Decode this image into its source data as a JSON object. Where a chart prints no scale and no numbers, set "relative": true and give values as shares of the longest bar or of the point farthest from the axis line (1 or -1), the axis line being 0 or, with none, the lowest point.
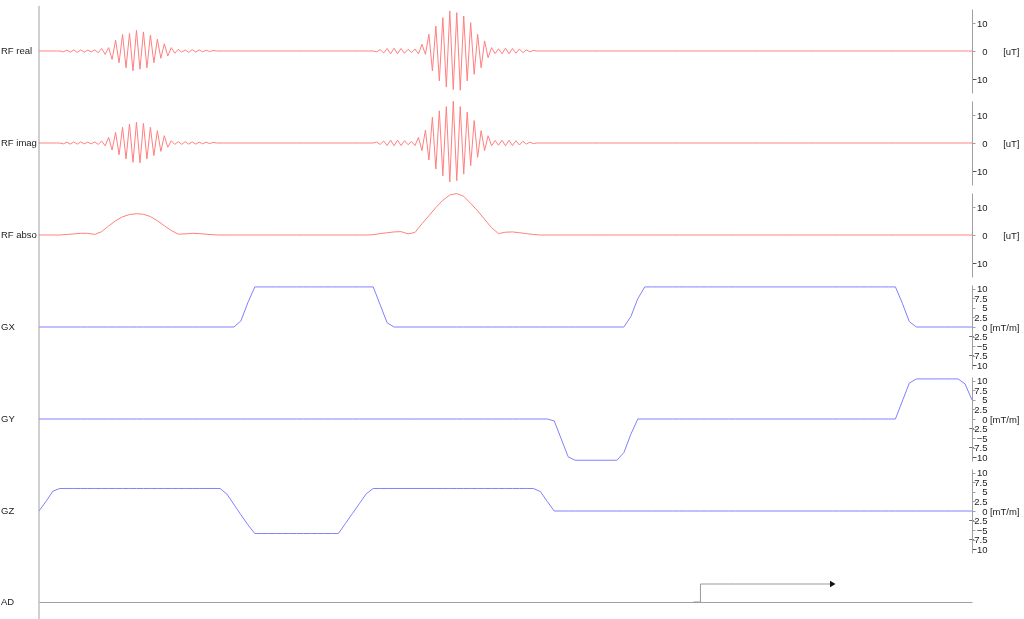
{
  "chart_data": [
    {
      "type": "line",
      "title": "RF real",
      "ylabel": "[uT]",
      "color": "#ff8080",
      "ylim": [
        -15,
        15
      ],
      "yticks": [
        10,
        0,
        -10
      ],
      "tick_labels": "y",
      "categories": [
        null,
        null,
        null,
        null,
        null,
        null,
        null,
        null,
        null,
        null,
        null,
        null,
        null,
        null,
        null,
        null,
        null,
        null,
        null,
        null,
        null,
        null,
        null,
        null,
        null,
        null,
        null,
        null,
        null,
        null,
        null,
        null,
        null,
        null,
        null,
        null,
        null,
        null,
        null,
        null,
        null,
        null,
        null,
        null,
        null,
        null,
        null,
        null,
        null,
        null,
        null,
        null,
        null,
        null,
        null,
        null,
        null,
        null,
        null,
        null,
        null,
        null,
        null,
        null,
        null,
        null,
        null,
        null,
        null,
        null,
        null,
        null,
        null,
        null,
        null,
        null,
        null,
        null,
        null,
        null,
        null,
        null,
        null,
        null,
        null,
        null,
        null,
        null,
        null,
        null,
        null,
        null,
        null,
        null,
        null,
        null,
        null,
        null,
        null,
        null,
        null,
        null,
        null,
        null,
        null,
        null,
        null,
        null,
        null,
        null,
        null,
        null,
        null,
        null,
        null,
        null,
        null,
        null,
        null,
        null,
        null,
        null,
        null,
        null,
        null,
        null,
        null,
        null,
        null,
        null,
        null,
        null,
        null,
        null,
        null,
        null,
        null,
        null,
        null,
        null,
        null,
        null,
        null,
        null,
        null,
        null,
        null,
        null,
        null,
        null,
        null,
        null,
        null,
        null,
        null,
        null,
        null,
        null,
        null,
        null,
        null,
        null,
        null,
        null,
        null,
        null,
        null,
        null,
        null,
        null,
        null,
        null,
        null,
        null,
        null,
        null,
        null,
        null,
        null,
        null,
        null,
        null,
        null,
        null,
        null,
        null,
        null,
        null,
        null,
        null,
        null,
        null,
        null,
        null,
        null,
        null,
        null,
        null,
        null,
        null,
        null,
        null,
        null,
        null,
        null,
        null,
        null,
        null,
        null,
        null,
        null,
        null,
        null,
        null,
        null,
        null,
        null,
        null,
        null,
        null,
        null,
        null,
        null,
        null,
        null,
        null,
        null,
        null,
        null,
        null,
        null,
        null,
        null,
        null,
        null,
        null,
        null,
        null,
        null,
        null,
        null,
        null,
        null,
        null,
        null,
        null,
        null,
        null,
        null,
        null,
        null,
        null,
        null,
        null,
        null,
        null,
        null,
        null,
        null,
        null,
        null,
        null,
        null,
        null,
        null,
        null,
        null,
        null,
        null
      ],
      "values": [
        0,
        0,
        0,
        0,
        0,
        0,
        0,
        -0.3,
        0.3,
        -0.4,
        0.4,
        -0.5,
        0.4,
        -0.4,
        0.3,
        -0.3,
        0.4,
        -0.6,
        0.9,
        -1.2,
        1.2,
        -3.0,
        3.9,
        -4.2,
        5.9,
        -6.0,
        6.3,
        -7.1,
        7.4,
        -6.5,
        6.8,
        -6.0,
        5.7,
        -4.2,
        4.2,
        -2.6,
        2.6,
        -1.8,
        1.2,
        -0.8,
        0.6,
        -0.4,
        0.4,
        -0.5,
        0.5,
        -0.4,
        0.4,
        -0.3,
        0.3,
        -0.2,
        0.2,
        0,
        0,
        0,
        0,
        0,
        0,
        0,
        0,
        0,
        0,
        0,
        0,
        0,
        0,
        0,
        0,
        0,
        0,
        0,
        0,
        0,
        0,
        0,
        0,
        0,
        0,
        0,
        0,
        0,
        0,
        0,
        0,
        0,
        0,
        0,
        0,
        0,
        0,
        0,
        0,
        0,
        0,
        0,
        0,
        0,
        0,
        -0.3,
        0.5,
        -0.7,
        0.9,
        -1.0,
        1.0,
        -1.0,
        0.9,
        -0.8,
        0.6,
        -0.5,
        0.7,
        -1.0,
        2.4,
        -1.2,
        6.0,
        -7.1,
        8.9,
        -10.7,
        11.9,
        -12.9,
        14.3,
        -13.8,
        13.7,
        -14.0,
        12.5,
        -10.7,
        10.1,
        -8.3,
        6.0,
        -6.0,
        3.6,
        -2.4,
        1.2,
        -0.9,
        0.8,
        -1.0,
        1.0,
        -1.0,
        0.9,
        -0.8,
        0.7,
        -0.6,
        0.4,
        -0.3,
        0.2,
        0,
        0,
        0,
        0,
        0,
        0,
        0,
        0,
        0,
        0,
        0,
        0,
        0,
        0,
        0,
        0,
        0,
        0,
        0,
        0,
        0,
        0,
        0,
        0,
        0,
        0,
        0,
        0,
        0,
        0,
        0,
        0,
        0,
        0,
        0,
        0,
        0,
        0,
        0,
        0,
        0,
        0,
        0,
        0,
        0,
        0,
        0,
        0,
        0,
        0,
        0,
        0,
        0,
        0,
        0,
        0,
        0,
        0,
        0,
        0,
        0,
        0,
        0,
        0,
        0,
        0,
        0,
        0,
        0,
        0,
        0,
        0,
        0,
        0,
        0,
        0,
        0,
        0,
        0,
        0,
        0,
        0,
        0,
        0,
        0,
        0,
        0,
        0,
        0,
        0,
        0,
        0,
        0,
        0,
        0,
        0,
        0,
        0,
        0,
        0,
        0,
        0,
        0,
        0,
        0,
        0,
        0,
        0,
        0,
        0,
        0,
        0,
        0,
        0,
        0,
        0,
        0,
        0,
        0,
        0,
        0,
        0,
        0,
        0,
        0,
        0
      ]
    },
    {
      "type": "line",
      "title": "RF imag",
      "ylabel": "[uT]",
      "color": "#ff8080",
      "ylim": [
        -15,
        15
      ],
      "yticks": [
        10,
        0,
        -10
      ],
      "tick_labels": "y",
      "categories": [
        null,
        null,
        null,
        null,
        null,
        null,
        null,
        null,
        null,
        null,
        null,
        null,
        null,
        null,
        null,
        null,
        null,
        null,
        null,
        null,
        null,
        null,
        null,
        null,
        null,
        null,
        null,
        null,
        null,
        null,
        null,
        null,
        null,
        null,
        null,
        null,
        null,
        null,
        null,
        null,
        null,
        null,
        null,
        null,
        null,
        null,
        null,
        null,
        null,
        null,
        null,
        null,
        null,
        null,
        null,
        null,
        null,
        null,
        null,
        null,
        null,
        null,
        null,
        null,
        null,
        null,
        null,
        null,
        null,
        null,
        null,
        null,
        null,
        null,
        null,
        null,
        null,
        null,
        null,
        null,
        null,
        null,
        null,
        null,
        null,
        null,
        null,
        null,
        null,
        null,
        null,
        null,
        null,
        null,
        null,
        null,
        null,
        null,
        null,
        null,
        null,
        null,
        null,
        null,
        null,
        null,
        null,
        null,
        null,
        null,
        null,
        null,
        null,
        null,
        null,
        null,
        null,
        null,
        null,
        null,
        null,
        null,
        null,
        null,
        null,
        null,
        null,
        null,
        null,
        null,
        null,
        null,
        null,
        null,
        null,
        null,
        null,
        null,
        null,
        null,
        null,
        null,
        null,
        null,
        null,
        null,
        null,
        null,
        null,
        null,
        null,
        null,
        null,
        null,
        null,
        null,
        null,
        null,
        null,
        null,
        null,
        null,
        null,
        null,
        null,
        null,
        null,
        null,
        null,
        null,
        null,
        null,
        null,
        null,
        null,
        null,
        null,
        null,
        null,
        null,
        null,
        null,
        null,
        null,
        null,
        null,
        null,
        null,
        null,
        null,
        null,
        null,
        null,
        null,
        null,
        null,
        null,
        null,
        null,
        null,
        null,
        null,
        null,
        null,
        null,
        null,
        null,
        null,
        null,
        null,
        null,
        null,
        null,
        null,
        null,
        null,
        null,
        null,
        null,
        null,
        null,
        null,
        null,
        null,
        null,
        null,
        null,
        null,
        null,
        null,
        null,
        null,
        null,
        null,
        null,
        null,
        null,
        null,
        null,
        null,
        null,
        null,
        null,
        null,
        null,
        null,
        null,
        null,
        null,
        null,
        null,
        null,
        null,
        null,
        null,
        null,
        null,
        null,
        null,
        null,
        null,
        null,
        null,
        null,
        null,
        null,
        null,
        null,
        null
      ],
      "values": [
        0,
        0,
        0,
        0,
        0,
        0,
        0,
        -0.3,
        0.3,
        -0.4,
        0.4,
        -0.4,
        0.4,
        -0.3,
        0.3,
        -0.3,
        0.4,
        -0.5,
        0.7,
        -1.0,
        2.0,
        -2.5,
        3.8,
        -4.2,
        5.6,
        -5.7,
        6.8,
        -6.9,
        7.4,
        -7.1,
        7.0,
        -5.7,
        5.6,
        -4.5,
        4.4,
        -3.0,
        2.6,
        -1.5,
        0.8,
        -0.5,
        0.5,
        -0.5,
        0.5,
        -0.4,
        0.4,
        -0.4,
        0.3,
        -0.3,
        0.3,
        -0.2,
        0.2,
        0,
        0,
        0,
        0,
        0,
        0,
        0,
        0,
        0,
        0,
        0,
        0,
        0,
        0,
        0,
        0,
        0,
        0,
        0,
        0,
        0,
        0,
        0,
        0,
        0,
        0,
        0,
        0,
        0,
        0,
        0,
        0,
        0,
        0,
        0,
        0,
        0,
        0,
        0,
        0,
        0,
        0,
        0,
        0,
        0,
        0,
        0.3,
        -0.5,
        0.7,
        -0.9,
        1.0,
        -1.0,
        1.0,
        -0.9,
        0.8,
        -0.6,
        0.5,
        -0.9,
        2.0,
        -2.7,
        4.6,
        -6.1,
        9.2,
        -9.3,
        11.5,
        -11.7,
        13.0,
        -13.9,
        14.9,
        -13.5,
        13.0,
        -11.1,
        11.0,
        -8.1,
        8.0,
        -5.1,
        4.4,
        -2.7,
        2.6,
        -1.0,
        0.9,
        -0.8,
        1.0,
        -1.0,
        1.0,
        -0.9,
        0.8,
        -0.7,
        0.6,
        -0.4,
        0.3,
        -0.2,
        0,
        0,
        0,
        0,
        0,
        0,
        0,
        0,
        0,
        0,
        0,
        0,
        0,
        0,
        0,
        0,
        0,
        0,
        0,
        0,
        0,
        0,
        0,
        0,
        0,
        0,
        0,
        0,
        0,
        0,
        0,
        0,
        0,
        0,
        0,
        0,
        0,
        0,
        0,
        0,
        0,
        0,
        0,
        0,
        0,
        0,
        0,
        0,
        0,
        0,
        0,
        0,
        0,
        0,
        0,
        0,
        0,
        0,
        0,
        0,
        0,
        0,
        0,
        0,
        0,
        0,
        0,
        0,
        0,
        0,
        0,
        0,
        0,
        0,
        0,
        0,
        0,
        0,
        0,
        0,
        0,
        0,
        0,
        0,
        0,
        0,
        0,
        0,
        0,
        0,
        0,
        0,
        0,
        0,
        0,
        0,
        0,
        0,
        0,
        0,
        0,
        0,
        0,
        0,
        0,
        0,
        0,
        0,
        0,
        0,
        0,
        0,
        0,
        0,
        0,
        0,
        0,
        0,
        0,
        0,
        0,
        0,
        0,
        0,
        0,
        0
      ]
    },
    {
      "type": "line",
      "title": "RF abso",
      "ylabel": "[uT]",
      "color": "#ff8080",
      "ylim": [
        -15,
        15
      ],
      "yticks": [
        10,
        0,
        -10
      ],
      "tick_labels": "y",
      "categories": [
        null,
        null,
        null,
        null,
        null,
        null,
        null,
        null,
        null,
        null,
        null,
        null,
        null,
        null,
        null,
        null,
        null,
        null,
        null,
        null,
        null,
        null,
        null,
        null,
        null,
        null,
        null,
        null,
        null,
        null,
        null,
        null,
        null,
        null,
        null,
        null,
        null,
        null,
        null,
        null,
        null,
        null,
        null,
        null,
        null,
        null,
        null,
        null,
        null,
        null,
        null,
        null,
        null,
        null,
        null,
        null,
        null,
        null,
        null,
        null,
        null,
        null,
        null,
        null,
        null,
        null,
        null,
        null,
        null,
        null,
        null,
        null,
        null,
        null,
        null,
        null,
        null,
        null,
        null,
        null,
        null,
        null,
        null,
        null,
        null,
        null,
        null,
        null,
        null,
        null,
        null,
        null,
        null,
        null,
        null,
        null,
        null,
        null,
        null,
        null,
        null,
        null,
        null,
        null,
        null,
        null,
        null,
        null,
        null,
        null,
        null,
        null,
        null,
        null,
        null,
        null,
        null,
        null,
        null,
        null,
        null,
        null,
        null,
        null,
        null,
        null,
        null,
        null,
        null,
        null,
        null,
        null,
        null,
        null,
        null
      ],
      "values": [
        0,
        0,
        0,
        0,
        0.2,
        0.4,
        0.6,
        0.6,
        0.2,
        1.2,
        3.2,
        5.1,
        6.5,
        7.3,
        7.6,
        7.4,
        6.6,
        5.1,
        3.3,
        1.6,
        0.3,
        0.4,
        0.6,
        0.5,
        0.3,
        0.1,
        0,
        0,
        0,
        0,
        0,
        0,
        0,
        0,
        0,
        0,
        0,
        0,
        0,
        0,
        0,
        0,
        0,
        0,
        0,
        0,
        0,
        0,
        0.1,
        0.5,
        0.8,
        1.1,
        1.2,
        0.4,
        0.9,
        4.0,
        6.9,
        9.8,
        12.4,
        14.3,
        14.8,
        13.8,
        11.3,
        8.6,
        5.6,
        2.6,
        0.5,
        1.0,
        1.1,
        0.8,
        0.5,
        0.2,
        0,
        0,
        0,
        0,
        0,
        0,
        0,
        0,
        0,
        0,
        0,
        0,
        0,
        0,
        0,
        0,
        0,
        0,
        0,
        0,
        0,
        0,
        0,
        0,
        0,
        0,
        0,
        0,
        0,
        0,
        0,
        0,
        0,
        0,
        0,
        0,
        0,
        0,
        0,
        0,
        0,
        0,
        0,
        0,
        0,
        0,
        0,
        0,
        0,
        0,
        0,
        0,
        0,
        0,
        0,
        0,
        0,
        0,
        0,
        0,
        0,
        0,
        0
      ]
    },
    {
      "type": "line",
      "title": "GX",
      "ylabel": "[mT/m]",
      "color": "#8080ff",
      "ylim": [
        -11,
        11
      ],
      "yticks": [
        10,
        7.5,
        5,
        2.5,
        0,
        -2.5,
        -5,
        -7.5,
        -10
      ],
      "tick_labels": "y",
      "categories": [
        null,
        null,
        null,
        null,
        null,
        null,
        null,
        null,
        null,
        null,
        null,
        null,
        null,
        null,
        null,
        null,
        null,
        null,
        null,
        null,
        null,
        null,
        null,
        null,
        null,
        null,
        null,
        null,
        null,
        null,
        null,
        null,
        null,
        null,
        null,
        null,
        null,
        null,
        null,
        null,
        null,
        null,
        null,
        null,
        null,
        null,
        null,
        null,
        null,
        null,
        null,
        null,
        null,
        null,
        null,
        null,
        null,
        null,
        null,
        null,
        null,
        null,
        null,
        null,
        null,
        null,
        null,
        null,
        null,
        null,
        null,
        null,
        null,
        null,
        null,
        null,
        null,
        null,
        null,
        null,
        null,
        null,
        null,
        null,
        null,
        null,
        null,
        null,
        null,
        null,
        null,
        null,
        null,
        null,
        null,
        null,
        null,
        null,
        null,
        null,
        null,
        null,
        null,
        null,
        null,
        null,
        null,
        null,
        null,
        null,
        null,
        null,
        null,
        null,
        null,
        null,
        null,
        null,
        null,
        null,
        null,
        null,
        null,
        null,
        null,
        null,
        null,
        null,
        null,
        null,
        null,
        null,
        null,
        null,
        null
      ],
      "values": [
        0,
        0,
        0,
        0,
        0,
        0,
        0,
        0,
        0,
        0,
        0,
        0,
        0,
        0,
        0,
        0,
        0,
        0,
        0,
        0,
        0,
        0,
        0,
        0,
        0,
        0,
        0,
        0,
        0,
        1.6,
        6.4,
        10.5,
        10.5,
        10.5,
        10.5,
        10.5,
        10.5,
        10.5,
        10.5,
        10.5,
        10.5,
        10.5,
        10.5,
        10.5,
        10.5,
        10.5,
        10.5,
        10.5,
        10.5,
        5.8,
        1.1,
        0,
        0,
        0,
        0,
        0,
        0,
        0,
        0,
        0,
        0,
        0,
        0,
        0,
        0,
        0,
        0,
        0,
        0,
        0,
        0,
        0,
        0,
        0,
        0,
        0,
        0,
        0,
        0,
        0,
        0,
        0,
        0,
        0,
        0,
        2.7,
        7.4,
        10.5,
        10.5,
        10.5,
        10.5,
        10.5,
        10.5,
        10.5,
        10.5,
        10.5,
        10.5,
        10.5,
        10.5,
        10.5,
        10.5,
        10.5,
        10.5,
        10.5,
        10.5,
        10.5,
        10.5,
        10.5,
        10.5,
        10.5,
        10.5,
        10.5,
        10.5,
        10.5,
        10.5,
        10.5,
        10.5,
        10.5,
        10.5,
        10.5,
        10.5,
        10.5,
        10.5,
        10.5,
        6.2,
        1.4,
        0,
        0,
        0,
        0,
        0,
        0,
        0,
        0,
        0
      ]
    },
    {
      "type": "line",
      "title": "GY",
      "ylabel": "[mT/m]",
      "color": "#8080ff",
      "ylim": [
        -11,
        11
      ],
      "yticks": [
        10,
        7.5,
        5,
        2.5,
        0,
        -2.5,
        -5,
        -7.5,
        -10
      ],
      "tick_labels": "y",
      "categories": [
        null,
        null,
        null,
        null,
        null,
        null,
        null,
        null,
        null,
        null,
        null,
        null,
        null,
        null,
        null,
        null,
        null,
        null,
        null,
        null,
        null,
        null,
        null,
        null,
        null,
        null,
        null,
        null,
        null,
        null,
        null,
        null,
        null,
        null,
        null,
        null,
        null,
        null,
        null,
        null,
        null,
        null,
        null,
        null,
        null,
        null,
        null,
        null,
        null,
        null,
        null,
        null,
        null,
        null,
        null,
        null,
        null,
        null,
        null,
        null,
        null,
        null,
        null,
        null,
        null,
        null,
        null,
        null,
        null,
        null,
        null,
        null,
        null,
        null,
        null,
        null,
        null,
        null,
        null,
        null,
        null,
        null,
        null,
        null,
        null,
        null,
        null,
        null,
        null,
        null,
        null,
        null,
        null,
        null,
        null,
        null,
        null,
        null,
        null,
        null,
        null,
        null,
        null,
        null,
        null,
        null,
        null,
        null,
        null,
        null,
        null,
        null,
        null,
        null,
        null,
        null,
        null,
        null,
        null,
        null,
        null,
        null,
        null,
        null,
        null,
        null,
        null,
        null,
        null,
        null,
        null,
        null,
        null,
        null,
        null
      ],
      "values": [
        0,
        0,
        0,
        0,
        0,
        0,
        0,
        0,
        0,
        0,
        0,
        0,
        0,
        0,
        0,
        0,
        0,
        0,
        0,
        0,
        0,
        0,
        0,
        0,
        0,
        0,
        0,
        0,
        0,
        0,
        0,
        0,
        0,
        0,
        0,
        0,
        0,
        0,
        0,
        0,
        0,
        0,
        0,
        0,
        0,
        0,
        0,
        0,
        0,
        0,
        0,
        0,
        0,
        0,
        0,
        0,
        0,
        0,
        0,
        0,
        0,
        0,
        0,
        0,
        0,
        0,
        0,
        0,
        0,
        0,
        0,
        0,
        0,
        0,
        -0.5,
        -5.2,
        -9.9,
        -10.8,
        -10.8,
        -10.8,
        -10.8,
        -10.8,
        -10.8,
        -10.8,
        -8.8,
        -4.0,
        0,
        0,
        0,
        0,
        0,
        0,
        0,
        0,
        0,
        0,
        0,
        0,
        0,
        0,
        0,
        0,
        0,
        0,
        0,
        0,
        0,
        0,
        0,
        0,
        0,
        0,
        0,
        0,
        0,
        0,
        0,
        0,
        0,
        0,
        0,
        0,
        0,
        0,
        4.7,
        9.4,
        10.5,
        10.5,
        10.5,
        10.5,
        10.5,
        10.5,
        10.5,
        9.2,
        5.0
      ]
    },
    {
      "type": "line",
      "title": "GZ",
      "ylabel": "[mT/m]",
      "color": "#8080ff",
      "ylim": [
        -11,
        11
      ],
      "yticks": [
        10,
        7.5,
        5,
        2.5,
        0,
        -2.5,
        -5,
        -7.5,
        -10
      ],
      "tick_labels": "y",
      "categories": [
        null,
        null,
        null,
        null,
        null,
        null,
        null,
        null,
        null,
        null,
        null,
        null,
        null,
        null,
        null,
        null,
        null,
        null,
        null,
        null,
        null,
        null,
        null,
        null,
        null,
        null,
        null,
        null,
        null,
        null,
        null,
        null,
        null,
        null,
        null,
        null,
        null,
        null,
        null,
        null,
        null,
        null,
        null,
        null,
        null,
        null,
        null,
        null,
        null,
        null,
        null,
        null,
        null,
        null,
        null,
        null,
        null,
        null,
        null,
        null,
        null,
        null,
        null,
        null,
        null,
        null,
        null,
        null,
        null,
        null,
        null,
        null,
        null,
        null,
        null,
        null,
        null,
        null,
        null,
        null,
        null,
        null,
        null,
        null,
        null,
        null,
        null,
        null,
        null,
        null,
        null,
        null,
        null,
        null,
        null,
        null,
        null,
        null,
        null,
        null,
        null,
        null,
        null,
        null,
        null,
        null,
        null,
        null,
        null,
        null,
        null,
        null,
        null,
        null,
        null,
        null,
        null,
        null,
        null,
        null,
        null,
        null,
        null,
        null,
        null,
        null,
        null,
        null,
        null,
        null,
        null,
        null,
        null,
        null,
        null
      ],
      "values": [
        0,
        2.5,
        5.2,
        5.9,
        5.9,
        5.9,
        5.9,
        5.9,
        5.9,
        5.9,
        5.9,
        5.9,
        5.9,
        5.9,
        5.9,
        5.9,
        5.9,
        5.9,
        5.9,
        5.9,
        5.9,
        5.9,
        5.9,
        5.9,
        5.9,
        5.9,
        5.9,
        4.4,
        1.7,
        -1.0,
        -3.6,
        -5.9,
        -5.9,
        -5.9,
        -5.9,
        -5.9,
        -5.9,
        -5.9,
        -5.9,
        -5.9,
        -5.9,
        -5.9,
        -5.9,
        -5.9,
        -3.3,
        -0.7,
        1.9,
        4.5,
        5.9,
        5.9,
        5.9,
        5.9,
        5.9,
        5.9,
        5.9,
        5.9,
        5.9,
        5.9,
        5.9,
        5.9,
        5.9,
        5.9,
        5.9,
        5.9,
        5.9,
        5.9,
        5.9,
        5.9,
        5.9,
        5.9,
        5.9,
        5.9,
        5.1,
        2.5,
        0,
        0,
        0,
        0,
        0,
        0,
        0,
        0,
        0,
        0,
        0,
        0,
        0,
        0,
        0,
        0,
        0,
        0,
        0,
        0,
        0,
        0,
        0,
        0,
        0,
        0,
        0,
        0,
        0,
        0,
        0,
        0,
        0,
        0,
        0,
        0,
        0,
        0,
        0,
        0,
        0,
        0,
        0,
        0,
        0,
        0,
        0,
        0,
        0,
        0,
        0,
        0,
        0,
        0,
        0,
        0,
        0,
        0,
        0,
        0,
        0
      ]
    },
    {
      "type": "step",
      "title": "AD",
      "color": "#999999",
      "relative": true,
      "tick_labels": false,
      "categories": [
        null,
        null,
        null,
        null,
        null,
        null,
        null,
        null,
        null,
        null,
        null,
        null,
        null,
        null,
        null,
        null,
        null,
        null,
        null,
        null,
        null,
        null,
        null,
        null,
        null,
        null,
        null,
        null,
        null,
        null,
        null,
        null,
        null,
        null,
        null,
        null,
        null,
        null,
        null,
        null,
        null,
        null,
        null,
        null,
        null,
        null,
        null,
        null,
        null,
        null,
        null,
        null,
        null,
        null,
        null,
        null,
        null,
        null,
        null,
        null,
        null,
        null,
        null,
        null,
        null,
        null,
        null,
        null,
        null,
        null,
        null,
        null,
        null,
        null,
        null,
        null,
        null,
        null,
        null,
        null,
        null,
        null,
        null,
        null,
        null,
        null,
        null,
        null,
        null,
        null,
        null,
        null,
        null,
        null,
        null,
        null,
        null,
        null,
        null,
        null,
        null,
        null,
        null,
        null,
        null,
        null,
        null,
        null,
        null,
        null,
        null,
        null,
        null,
        null,
        null,
        null,
        null,
        null,
        null,
        null,
        null,
        null,
        null,
        null,
        null,
        null,
        null,
        null,
        null,
        null,
        null,
        null,
        null,
        null,
        null
      ],
      "values": [
        null,
        null,
        null,
        null,
        null,
        null,
        null,
        null,
        null,
        null,
        null,
        null,
        null,
        null,
        null,
        null,
        null,
        null,
        null,
        null,
        null,
        null,
        null,
        null,
        null,
        null,
        null,
        null,
        null,
        null,
        null,
        null,
        null,
        null,
        null,
        null,
        null,
        null,
        null,
        null,
        null,
        null,
        null,
        null,
        null,
        null,
        null,
        null,
        null,
        null,
        null,
        null,
        null,
        null,
        null,
        null,
        null,
        null,
        null,
        null,
        null,
        null,
        null,
        null,
        null,
        null,
        null,
        null,
        null,
        null,
        null,
        null,
        null,
        null,
        null,
        null,
        null,
        null,
        null,
        null,
        null,
        null,
        null,
        null,
        null,
        null,
        null,
        null,
        null,
        null,
        null,
        null,
        null,
        null,
        0,
        1,
        1,
        1,
        1,
        1,
        1,
        1,
        1,
        1,
        1,
        1,
        1,
        1,
        1,
        1,
        1,
        1,
        1,
        1,
        1,
        null,
        null,
        null,
        null,
        null,
        null,
        null,
        null,
        null,
        null,
        null,
        null,
        null,
        null,
        null,
        null,
        null,
        null,
        null,
        null
      ]
    }
  ]
}
